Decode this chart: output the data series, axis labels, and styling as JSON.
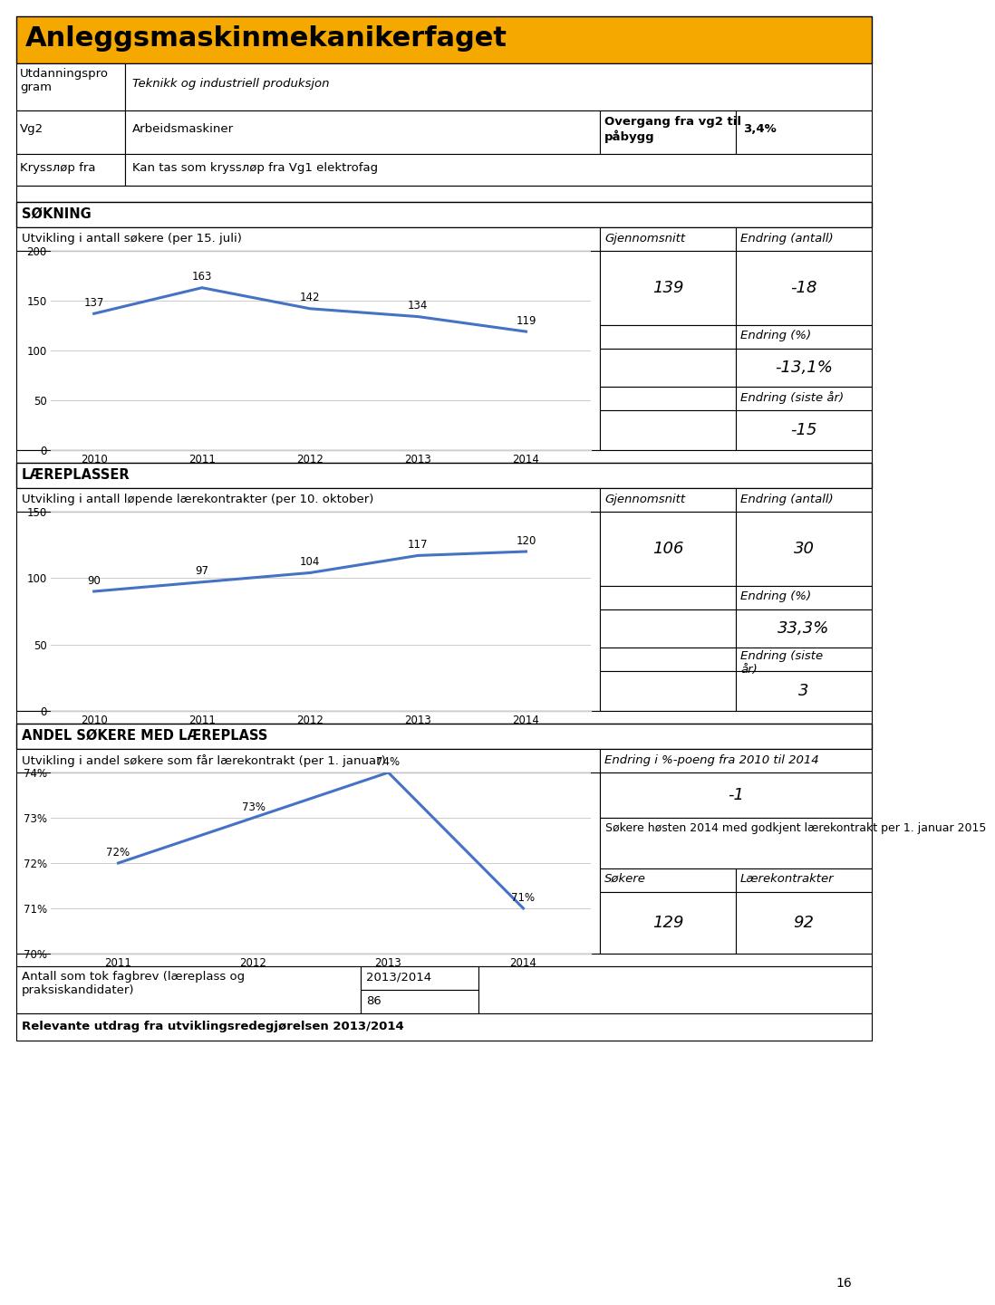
{
  "title": "Anleggsmaskinmekanikerfaget",
  "header_bg": "#F5A800",
  "sokning_section": {
    "subtitle": "Utvikling i antall søkere (per 15. juli)",
    "years": [
      2010,
      2011,
      2012,
      2013,
      2014
    ],
    "values": [
      137,
      163,
      142,
      134,
      119
    ],
    "gjennomsnitt": 139,
    "endring_antall": "-18",
    "endring_pct": "-13,1%",
    "endring_siste": "-15",
    "ylim": [
      0,
      200
    ],
    "yticks": [
      0,
      50,
      100,
      150,
      200
    ],
    "line_color": "#4472C4"
  },
  "laereplasser_section": {
    "subtitle": "Utvikling i antall løpende lærekontrakter (per 10. oktober)",
    "years": [
      2010,
      2011,
      2012,
      2013,
      2014
    ],
    "values": [
      90,
      97,
      104,
      117,
      120
    ],
    "gjennomsnitt": 106,
    "endring_antall": "30",
    "endring_pct": "33,3%",
    "endring_siste": "3",
    "ylim": [
      0,
      150
    ],
    "yticks": [
      0,
      50,
      100,
      150
    ],
    "line_color": "#4472C4"
  },
  "andel_section": {
    "subtitle": "Utvikling i andel søkere som får lærekontrakt (per 1. januar)",
    "years": [
      2011,
      2012,
      2013,
      2014
    ],
    "values": [
      72,
      73,
      74,
      71
    ],
    "value_labels": [
      "72%",
      "73%",
      "74%",
      "71%"
    ],
    "ylim": [
      70,
      74
    ],
    "yticks": [
      70,
      71,
      72,
      73,
      74
    ],
    "ytick_labels": [
      "70%",
      "71%",
      "72%",
      "73%",
      "74%"
    ],
    "line_color": "#4472C4",
    "endring_poeng": "-1",
    "sokere_label": "Søkere høsten 2014 med godkjent lærekontrakt per 1. januar 2015",
    "sokere_val": "129",
    "laerekontrakter_val": "92"
  },
  "fagbrev_label": "Antall som tok fagbrev (læreplass og\npraksiskandidater)",
  "fagbrev_year": "2013/2014",
  "fagbrev_value": "86",
  "relevante_row": "Relevante utdrag fra utviklingsredegjørelsen 2013/2014",
  "page_number": "16"
}
